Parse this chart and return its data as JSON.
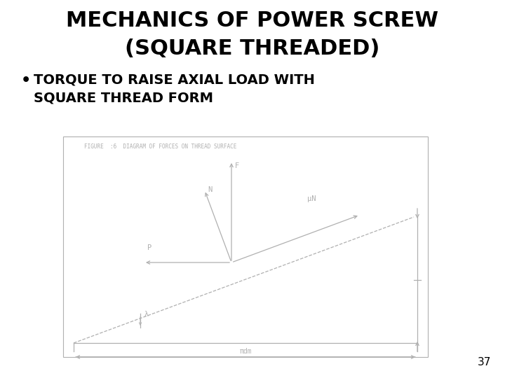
{
  "bg_color": "#ffffff",
  "title_line1": "MECHANICS OF POWER SCREW",
  "title_line2": "(SQUARE THREADED)",
  "bullet_line1": "TORQUE TO RAISE AXIAL LOAD WITH",
  "bullet_line2": "SQUARE THREAD FORM",
  "figure_caption": "FIGURE  :6  DIAGRAM OF FORCES ON THREAD SURFACE",
  "page_number": "37",
  "title_fontsize": 22,
  "bullet_fontsize": 14,
  "line_color": "#b0b0b0",
  "text_color": "#b0b0b0"
}
